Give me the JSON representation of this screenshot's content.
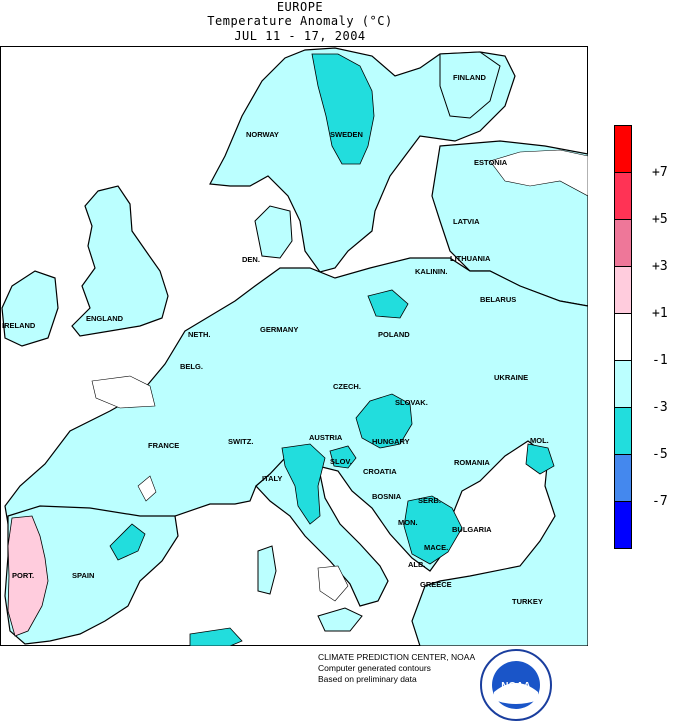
{
  "header": {
    "region": "EUROPE",
    "title": "Temperature Anomaly (°C)",
    "period": "JUL 11 - 17, 2004"
  },
  "countries": {
    "finland": "FINLAND",
    "norway": "NORWAY",
    "sweden": "SWEDEN",
    "estonia": "ESTONIA",
    "latvia": "LATVIA",
    "lithuania": "LITHUANIA",
    "kalinin": "KALININ.",
    "belarus": "BELARUS",
    "den": "DEN.",
    "ireland": "IRELAND",
    "england": "ENGLAND",
    "neth": "NETH.",
    "germany": "GERMANY",
    "poland": "POLAND",
    "belg": "BELG.",
    "czech": "CZECH.",
    "slovak": "SLOVAK.",
    "ukraine": "UKRAINE",
    "france": "FRANCE",
    "switz": "SWITZ.",
    "austria": "AUSTRIA",
    "hungary": "HUNGARY",
    "mol": "MOL.",
    "slov": "SLOV.",
    "croatia": "CROATIA",
    "romania": "ROMANIA",
    "italy": "ITALY",
    "bosnia": "BOSNIA",
    "serb": "SERB.",
    "mon": "MON.",
    "bulgaria": "BULGARIA",
    "mace": "MACE.",
    "alb": "ALB.",
    "greece": "GREECE",
    "turkey": "TURKEY",
    "port": "PORT.",
    "spain": "SPAIN"
  },
  "legend": {
    "ticks": [
      "+7",
      "+5",
      "+3",
      "+1",
      "-1",
      "-3",
      "-5",
      "-7"
    ],
    "colors": [
      "#ff0000",
      "#ff3355",
      "#ee7799",
      "#ffccdd",
      "#ffffff",
      "#bbffff",
      "#22dddd",
      "#4488ee",
      "#0000ff"
    ]
  },
  "credits": {
    "line1": "CLIMATE PREDICTION CENTER, NOAA",
    "line2": "Computer generated contours",
    "line3": "Based on preliminary data",
    "logo_text": "NOAA"
  },
  "colors": {
    "light_cyan": "#bbffff",
    "cyan": "#22dddd",
    "pink": "#ffccdd"
  }
}
